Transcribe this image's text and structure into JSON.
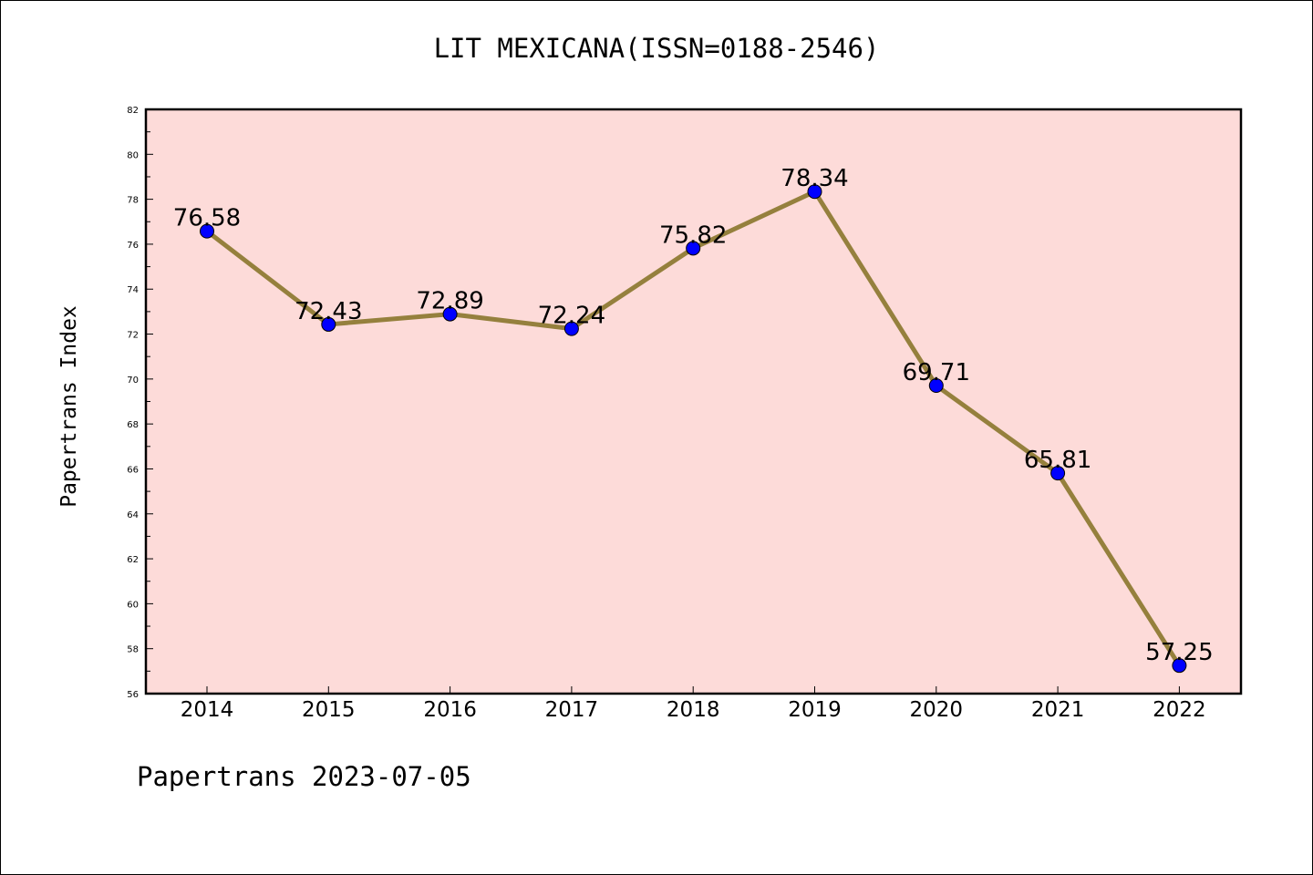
{
  "chart_data": {
    "type": "line",
    "title": "LIT MEXICANA(ISSN=0188-2546)",
    "ylabel": "Papertrans Index",
    "xlabel": "",
    "x": [
      "2014",
      "2015",
      "2016",
      "2017",
      "2018",
      "2019",
      "2020",
      "2021",
      "2022"
    ],
    "series": [
      {
        "values": [
          76.58,
          72.43,
          72.89,
          72.24,
          75.82,
          78.34,
          69.71,
          65.81,
          57.25
        ],
        "line_color": "#95803d",
        "marker_color": "#0000ff"
      }
    ],
    "data_labels": [
      "76.58",
      "72.43",
      "72.89",
      "72.24",
      "75.82",
      "78.34",
      "69.71",
      "65.81",
      "57.25"
    ],
    "ylim": [
      56,
      82
    ],
    "y_ticks": [
      "56",
      "58",
      "60",
      "62",
      "64",
      "66",
      "68",
      "70",
      "72",
      "74",
      "76",
      "78",
      "80",
      "82"
    ],
    "grid": false,
    "plot_background": "#fddbd9"
  },
  "footer": "Papertrans 2023-07-05"
}
